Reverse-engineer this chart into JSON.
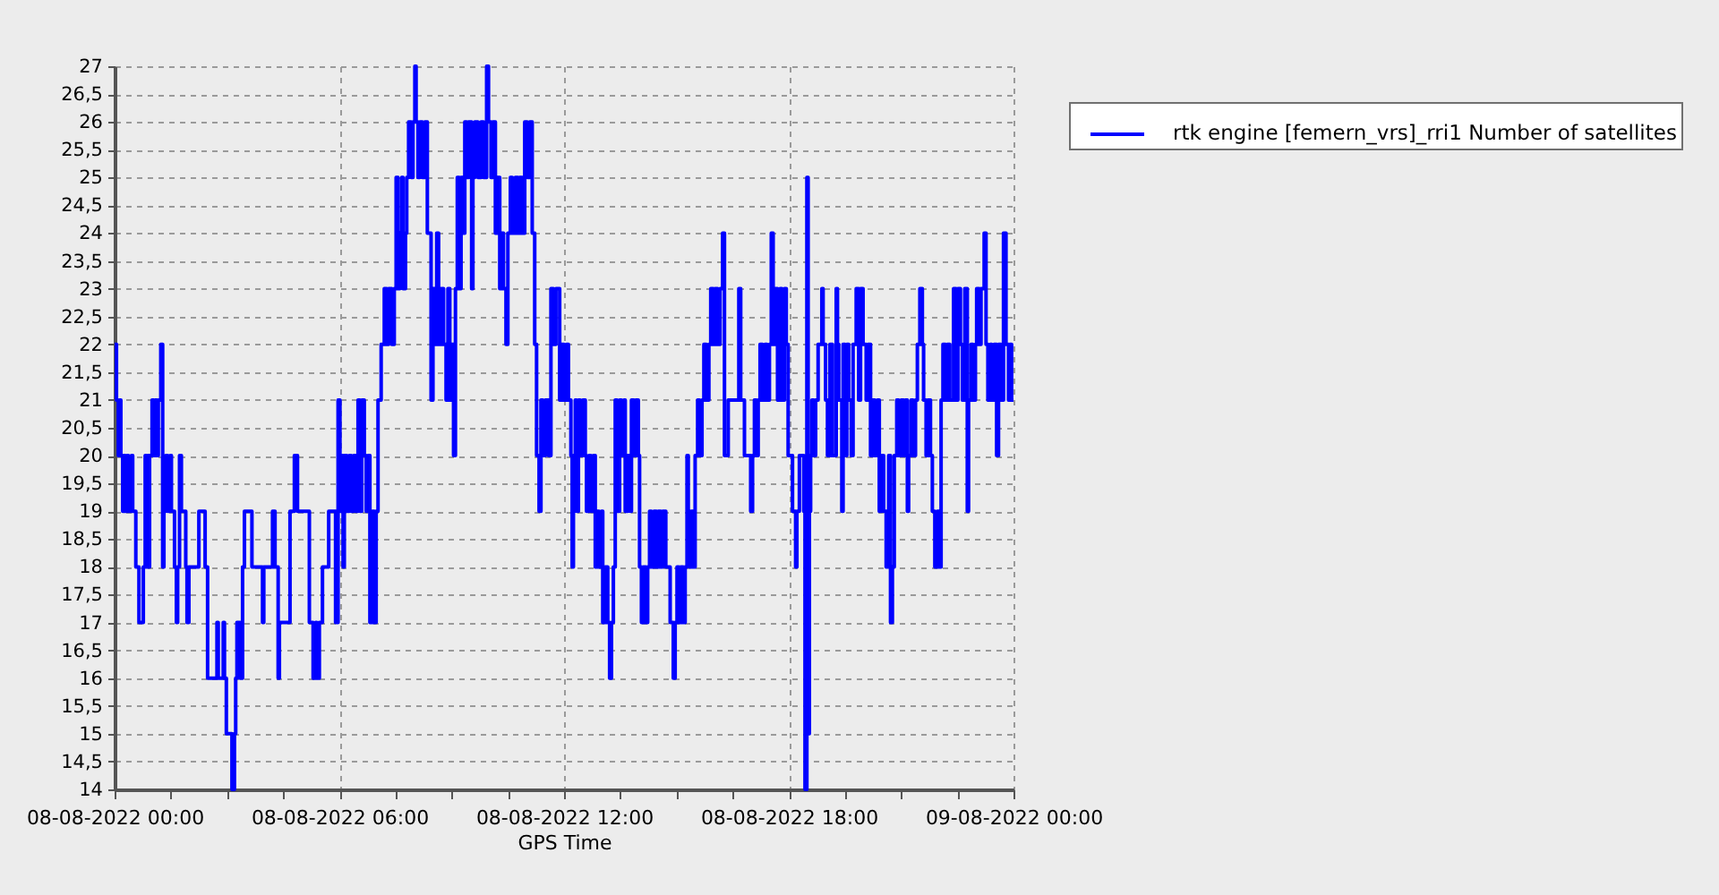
{
  "chart_data": {
    "type": "step",
    "xlabel": "GPS Time",
    "x": [
      "2022-08-08T00:00",
      "2022-08-08T00:03",
      "2022-08-08T00:06",
      "2022-08-08T00:08",
      "2022-08-08T00:10",
      "2022-08-08T00:13",
      "2022-08-08T00:15",
      "2022-08-08T00:17",
      "2022-08-08T00:20",
      "2022-08-08T00:22",
      "2022-08-08T00:27",
      "2022-08-08T00:29",
      "2022-08-08T00:34",
      "2022-08-08T00:39",
      "2022-08-08T00:46",
      "2022-08-08T00:49",
      "2022-08-08T00:51",
      "2022-08-08T00:53",
      "2022-08-08T00:55",
      "2022-08-08T00:56",
      "2022-08-08T01:00",
      "2022-08-08T01:03",
      "2022-08-08T01:05",
      "2022-08-08T01:08",
      "2022-08-08T01:10",
      "2022-08-08T01:14",
      "2022-08-08T01:17",
      "2022-08-08T01:19",
      "2022-08-08T01:22",
      "2022-08-08T01:25",
      "2022-08-08T01:29",
      "2022-08-08T01:31",
      "2022-08-08T01:36",
      "2022-08-08T01:39",
      "2022-08-08T01:41",
      "2022-08-08T01:44",
      "2022-08-08T01:47",
      "2022-08-08T01:54",
      "2022-08-08T01:56",
      "2022-08-08T01:59",
      "2022-08-08T02:15",
      "2022-08-08T02:25",
      "2022-08-08T02:29",
      "2022-08-08T02:44",
      "2022-08-08T02:46",
      "2022-08-08T02:54",
      "2022-08-08T02:56",
      "2022-08-08T02:59",
      "2022-08-08T03:08",
      "2022-08-08T03:12",
      "2022-08-08T03:14",
      "2022-08-08T03:16",
      "2022-08-08T03:21",
      "2022-08-08T03:25",
      "2022-08-08T03:28",
      "2022-08-08T03:40",
      "2022-08-08T03:57",
      "2022-08-08T03:59",
      "2022-08-08T04:13",
      "2022-08-08T04:17",
      "2022-08-08T04:22",
      "2022-08-08T04:24",
      "2022-08-08T04:41",
      "2022-08-08T04:48",
      "2022-08-08T04:53",
      "2022-08-08T05:12",
      "2022-08-08T05:18",
      "2022-08-08T05:22",
      "2022-08-08T05:24",
      "2022-08-08T05:28",
      "2022-08-08T05:33",
      "2022-08-08T05:43",
      "2022-08-08T05:54",
      "2022-08-08T05:58",
      "2022-08-08T06:01",
      "2022-08-08T06:04",
      "2022-08-08T06:06",
      "2022-08-08T06:08",
      "2022-08-08T06:12",
      "2022-08-08T06:16",
      "2022-08-08T06:19",
      "2022-08-08T06:23",
      "2022-08-08T06:26",
      "2022-08-08T06:30",
      "2022-08-08T06:33",
      "2022-08-08T06:36",
      "2022-08-08T06:40",
      "2022-08-08T06:43",
      "2022-08-08T06:46",
      "2022-08-08T06:49",
      "2022-08-08T06:53",
      "2022-08-08T06:56",
      "2022-08-08T06:59",
      "2022-08-08T07:02",
      "2022-08-08T07:07",
      "2022-08-08T07:12",
      "2022-08-08T07:16",
      "2022-08-08T07:19",
      "2022-08-08T07:24",
      "2022-08-08T07:28",
      "2022-08-08T07:31",
      "2022-08-08T07:34",
      "2022-08-08T07:37",
      "2022-08-08T07:40",
      "2022-08-08T07:42",
      "2022-08-08T07:46",
      "2022-08-08T07:48",
      "2022-08-08T07:51",
      "2022-08-08T07:55",
      "2022-08-08T07:58",
      "2022-08-08T08:01",
      "2022-08-08T08:03",
      "2022-08-08T08:06",
      "2022-08-08T08:09",
      "2022-08-08T08:13",
      "2022-08-08T08:17",
      "2022-08-08T08:21",
      "2022-08-08T08:27",
      "2022-08-08T08:30",
      "2022-08-08T08:33",
      "2022-08-08T08:36",
      "2022-08-08T08:39",
      "2022-08-08T08:43",
      "2022-08-08T08:47",
      "2022-08-08T08:51",
      "2022-08-08T08:54",
      "2022-08-08T08:57",
      "2022-08-08T09:00",
      "2022-08-08T09:03",
      "2022-08-08T09:06",
      "2022-08-08T09:09",
      "2022-08-08T09:12",
      "2022-08-08T09:15",
      "2022-08-08T09:18",
      "2022-08-08T09:21",
      "2022-08-08T09:24",
      "2022-08-08T09:27",
      "2022-08-08T09:32",
      "2022-08-08T09:34",
      "2022-08-08T09:37",
      "2022-08-08T09:42",
      "2022-08-08T09:47",
      "2022-08-08T09:51",
      "2022-08-08T09:56",
      "2022-08-08T09:59",
      "2022-08-08T10:03",
      "2022-08-08T10:06",
      "2022-08-08T10:10",
      "2022-08-08T10:13",
      "2022-08-08T10:17",
      "2022-08-08T10:20",
      "2022-08-08T10:23",
      "2022-08-08T10:27",
      "2022-08-08T10:30",
      "2022-08-08T10:34",
      "2022-08-08T10:37",
      "2022-08-08T10:42",
      "2022-08-08T10:46",
      "2022-08-08T10:49",
      "2022-08-08T10:53",
      "2022-08-08T10:57",
      "2022-08-08T11:01",
      "2022-08-08T11:05",
      "2022-08-08T11:09",
      "2022-08-08T11:13",
      "2022-08-08T11:16",
      "2022-08-08T11:20",
      "2022-08-08T11:23",
      "2022-08-08T11:26",
      "2022-08-08T11:30",
      "2022-08-08T11:35",
      "2022-08-08T11:39",
      "2022-08-08T11:43",
      "2022-08-08T11:47",
      "2022-08-08T11:53",
      "2022-08-08T11:56",
      "2022-08-08T12:00",
      "2022-08-08T12:04",
      "2022-08-08T12:07",
      "2022-08-08T12:11",
      "2022-08-08T12:13",
      "2022-08-08T12:15",
      "2022-08-08T12:18",
      "2022-08-08T12:20",
      "2022-08-08T12:23",
      "2022-08-08T12:26",
      "2022-08-08T12:30",
      "2022-08-08T12:34",
      "2022-08-08T12:36",
      "2022-08-08T12:40",
      "2022-08-08T12:43",
      "2022-08-08T12:47",
      "2022-08-08T12:50",
      "2022-08-08T12:53",
      "2022-08-08T12:56",
      "2022-08-08T13:00",
      "2022-08-08T13:02",
      "2022-08-08T13:06",
      "2022-08-08T13:10",
      "2022-08-08T13:13",
      "2022-08-08T13:16",
      "2022-08-08T13:19",
      "2022-08-08T13:22",
      "2022-08-08T13:25",
      "2022-08-08T13:29",
      "2022-08-08T13:32",
      "2022-08-08T13:36",
      "2022-08-08T13:38",
      "2022-08-08T13:42",
      "2022-08-08T13:46",
      "2022-08-08T13:48",
      "2022-08-08T13:52",
      "2022-08-08T13:55",
      "2022-08-08T13:59",
      "2022-08-08T14:01",
      "2022-08-08T14:04",
      "2022-08-08T14:07",
      "2022-08-08T14:11",
      "2022-08-08T14:14",
      "2022-08-08T14:17",
      "2022-08-08T14:20",
      "2022-08-08T14:24",
      "2022-08-08T14:28",
      "2022-08-08T14:31",
      "2022-08-08T14:35",
      "2022-08-08T14:38",
      "2022-08-08T14:43",
      "2022-08-08T14:50",
      "2022-08-08T14:55",
      "2022-08-08T14:58",
      "2022-08-08T15:01",
      "2022-08-08T15:04",
      "2022-08-08T15:07",
      "2022-08-08T15:11",
      "2022-08-08T15:14",
      "2022-08-08T15:17",
      "2022-08-08T15:19",
      "2022-08-08T15:22",
      "2022-08-08T15:24",
      "2022-08-08T15:28",
      "2022-08-08T15:30",
      "2022-08-08T15:34",
      "2022-08-08T15:37",
      "2022-08-08T15:41",
      "2022-08-08T15:44",
      "2022-08-08T15:48",
      "2022-08-08T15:52",
      "2022-08-08T15:55",
      "2022-08-08T15:59",
      "2022-08-08T16:02",
      "2022-08-08T16:06",
      "2022-08-08T16:10",
      "2022-08-08T16:14",
      "2022-08-08T16:17",
      "2022-08-08T16:23",
      "2022-08-08T16:40",
      "2022-08-08T16:43",
      "2022-08-08T16:49",
      "2022-08-08T16:59",
      "2022-08-08T17:02",
      "2022-08-08T17:05",
      "2022-08-08T17:08",
      "2022-08-08T17:11",
      "2022-08-08T17:14",
      "2022-08-08T17:18",
      "2022-08-08T17:22",
      "2022-08-08T17:25",
      "2022-08-08T17:29",
      "2022-08-08T17:32",
      "2022-08-08T17:35",
      "2022-08-08T17:37",
      "2022-08-08T17:42",
      "2022-08-08T17:46",
      "2022-08-08T17:49",
      "2022-08-08T17:53",
      "2022-08-08T17:56",
      "2022-08-08T17:59",
      "2022-08-08T18:06",
      "2022-08-08T18:11",
      "2022-08-08T18:13",
      "2022-08-08T18:17",
      "2022-08-08T18:24",
      "2022-08-08T18:26",
      "2022-08-08T18:29",
      "2022-08-08T18:31",
      "2022-08-08T18:33",
      "2022-08-08T18:35",
      "2022-08-08T18:37",
      "2022-08-08T18:40",
      "2022-08-08T18:43",
      "2022-08-08T18:47",
      "2022-08-08T18:53",
      "2022-08-08T18:55",
      "2022-08-08T18:59",
      "2022-08-08T19:02",
      "2022-08-08T19:06",
      "2022-08-08T19:10",
      "2022-08-08T19:16",
      "2022-08-08T19:18",
      "2022-08-08T19:20",
      "2022-08-08T19:25",
      "2022-08-08T19:27",
      "2022-08-08T19:30",
      "2022-08-08T19:33",
      "2022-08-08T19:36",
      "2022-08-08T19:40",
      "2022-08-08T19:43",
      "2022-08-08T19:48",
      "2022-08-08T19:52",
      "2022-08-08T19:55",
      "2022-08-08T19:59",
      "2022-08-08T20:04",
      "2022-08-08T20:07",
      "2022-08-08T20:11",
      "2022-08-08T20:14",
      "2022-08-08T20:18",
      "2022-08-08T20:22",
      "2022-08-08T20:25",
      "2022-08-08T20:29",
      "2022-08-08T20:32",
      "2022-08-08T20:36",
      "2022-08-08T20:40",
      "2022-08-08T20:43",
      "2022-08-08T20:46",
      "2022-08-08T20:49",
      "2022-08-08T20:53",
      "2022-08-08T20:56",
      "2022-08-08T21:00",
      "2022-08-08T21:04",
      "2022-08-08T21:07",
      "2022-08-08T21:10",
      "2022-08-08T21:12",
      "2022-08-08T21:16",
      "2022-08-08T21:19",
      "2022-08-08T21:23",
      "2022-08-08T21:26",
      "2022-08-08T21:30",
      "2022-08-08T21:34",
      "2022-08-08T21:36",
      "2022-08-08T21:40",
      "2022-08-08T21:43",
      "2022-08-08T21:47",
      "2022-08-08T21:50",
      "2022-08-08T21:54",
      "2022-08-08T21:58",
      "2022-08-08T22:01",
      "2022-08-08T22:04",
      "2022-08-08T22:07",
      "2022-08-08T22:11",
      "2022-08-08T22:14",
      "2022-08-08T22:18",
      "2022-08-08T22:24",
      "2022-08-08T22:28",
      "2022-08-08T22:31",
      "2022-08-08T22:35",
      "2022-08-08T22:38",
      "2022-08-08T22:42",
      "2022-08-08T22:46",
      "2022-08-08T22:48",
      "2022-08-08T22:52",
      "2022-08-08T22:55",
      "2022-08-08T22:59",
      "2022-08-08T23:01",
      "2022-08-08T23:05",
      "2022-08-08T23:08",
      "2022-08-08T23:13",
      "2022-08-08T23:16",
      "2022-08-08T23:19",
      "2022-08-08T23:23",
      "2022-08-08T23:25",
      "2022-08-08T23:29",
      "2022-08-08T23:33",
      "2022-08-08T23:36",
      "2022-08-08T23:40",
      "2022-08-08T23:44",
      "2022-08-08T23:48",
      "2022-08-08T23:52",
      "2022-08-08T23:54",
      "2022-08-08T23:57",
      "2022-08-09T00:00"
    ],
    "series": [
      {
        "name": "rtk engine [femern_vrs]_rri1 Number of satellites",
        "color": "#0000ff",
        "values": [
          22,
          21,
          20,
          21,
          20,
          19,
          20,
          19,
          20,
          19,
          20,
          19,
          18,
          17,
          18,
          20,
          18,
          20,
          18,
          20,
          21,
          20,
          21,
          20,
          21,
          22,
          18,
          19,
          20,
          19,
          20,
          19,
          18,
          17,
          18,
          20,
          19,
          18,
          17,
          18,
          19,
          18,
          16,
          17,
          16,
          17,
          16,
          15,
          14,
          15,
          16,
          17,
          16,
          18,
          19,
          18,
          17,
          18,
          19,
          18,
          16,
          17,
          19,
          20,
          19,
          17,
          16,
          17,
          16,
          17,
          18,
          19,
          17,
          21,
          19,
          20,
          18,
          20,
          19,
          20,
          19,
          20,
          19,
          21,
          19,
          21,
          20,
          19,
          20,
          17,
          19,
          17,
          19,
          21,
          22,
          23,
          22,
          23,
          22,
          23,
          25,
          23,
          24,
          25,
          23,
          24,
          25,
          26,
          25,
          26,
          27,
          26,
          25,
          26,
          25,
          26,
          24,
          21,
          23,
          22,
          24,
          22,
          23,
          22,
          21,
          23,
          21,
          22,
          20,
          23,
          25,
          23,
          25,
          24,
          26,
          25,
          26,
          23,
          25,
          26,
          25,
          26,
          25,
          27,
          26,
          25,
          26,
          24,
          25,
          23,
          24,
          23,
          22,
          24,
          25,
          24,
          25,
          24,
          25,
          24,
          26,
          25,
          26,
          24,
          22,
          20,
          19,
          21,
          20,
          21,
          20,
          23,
          22,
          23,
          21,
          22,
          21,
          22,
          21,
          20,
          18,
          20,
          21,
          19,
          21,
          20,
          21,
          20,
          19,
          20,
          19,
          20,
          18,
          19,
          18,
          19,
          17,
          18,
          17,
          16,
          17,
          18,
          21,
          19,
          21,
          20,
          21,
          19,
          20,
          19,
          21,
          20,
          21,
          20,
          18,
          17,
          18,
          17,
          18,
          19,
          18,
          19,
          18,
          19,
          18,
          19,
          18,
          17,
          16,
          17,
          18,
          17,
          18,
          17,
          18,
          20,
          19,
          18,
          19,
          18,
          20,
          21,
          20,
          21,
          22,
          21,
          22,
          23,
          22,
          23,
          22,
          23,
          24,
          20,
          21,
          23,
          21,
          20,
          19,
          20,
          21,
          20,
          21,
          22,
          21,
          22,
          21,
          22,
          24,
          22,
          23,
          21,
          23,
          21,
          23,
          22,
          20,
          19,
          18,
          19,
          20,
          19,
          14,
          25,
          15,
          19,
          20,
          21,
          20,
          21,
          22,
          23,
          22,
          21,
          20,
          22,
          20,
          23,
          22,
          21,
          19,
          22,
          20,
          22,
          21,
          20,
          22,
          23,
          21,
          23,
          22,
          21,
          22,
          20,
          21,
          20,
          21,
          19,
          20,
          19,
          18,
          20,
          17,
          18,
          20,
          21,
          20,
          21,
          20,
          21,
          19,
          20,
          21,
          20,
          21,
          22,
          23,
          22,
          21,
          20,
          21,
          20,
          19,
          18,
          19,
          18,
          21,
          22,
          21,
          22,
          21,
          23,
          21,
          23,
          22,
          21,
          23,
          19,
          21,
          22,
          21,
          22,
          23,
          22,
          23,
          24,
          22,
          21,
          22,
          21,
          22,
          20,
          22,
          21,
          24,
          22,
          21,
          22,
          21,
          21
        ]
      }
    ],
    "xlim": [
      "2022-08-08T00:00",
      "2022-08-09T00:00"
    ],
    "xticks": [
      {
        "value": "2022-08-08T00:00",
        "label": "08-08-2022 00:00"
      },
      {
        "value": "2022-08-08T01:30",
        "label": null
      },
      {
        "value": "2022-08-08T03:00",
        "label": null
      },
      {
        "value": "2022-08-08T04:30",
        "label": null
      },
      {
        "value": "2022-08-08T06:00",
        "label": "08-08-2022 06:00"
      },
      {
        "value": "2022-08-08T07:30",
        "label": null
      },
      {
        "value": "2022-08-08T09:00",
        "label": null
      },
      {
        "value": "2022-08-08T10:30",
        "label": null
      },
      {
        "value": "2022-08-08T12:00",
        "label": "08-08-2022 12:00"
      },
      {
        "value": "2022-08-08T13:30",
        "label": null
      },
      {
        "value": "2022-08-08T15:00",
        "label": null
      },
      {
        "value": "2022-08-08T16:30",
        "label": null
      },
      {
        "value": "2022-08-08T18:00",
        "label": "08-08-2022 18:00"
      },
      {
        "value": "2022-08-08T19:30",
        "label": null
      },
      {
        "value": "2022-08-08T21:00",
        "label": null
      },
      {
        "value": "2022-08-08T22:30",
        "label": null
      },
      {
        "value": "2022-08-09T00:00",
        "label": "09-08-2022 00:00"
      }
    ],
    "ylim": [
      14,
      27
    ],
    "yticks": [
      14,
      {
        "value": 14.5,
        "label": "14,5"
      },
      15,
      {
        "value": 15.5,
        "label": "15,5"
      },
      16,
      {
        "value": 16.5,
        "label": "16,5"
      },
      17,
      {
        "value": 17.5,
        "label": "17,5"
      },
      18,
      {
        "value": 18.5,
        "label": "18,5"
      },
      19,
      {
        "value": 19.5,
        "label": "19,5"
      },
      20,
      {
        "value": 20.5,
        "label": "20,5"
      },
      21,
      {
        "value": 21.5,
        "label": "21,5"
      },
      22,
      {
        "value": 22.5,
        "label": "22,5"
      },
      23,
      {
        "value": 23.5,
        "label": "23,5"
      },
      24,
      {
        "value": 24.5,
        "label": "24,5"
      },
      25,
      {
        "value": 25.5,
        "label": "25,5"
      },
      26,
      {
        "value": 26.5,
        "label": "26,5"
      },
      27
    ],
    "grid": true,
    "legend": "top right",
    "line_style": "solid"
  }
}
